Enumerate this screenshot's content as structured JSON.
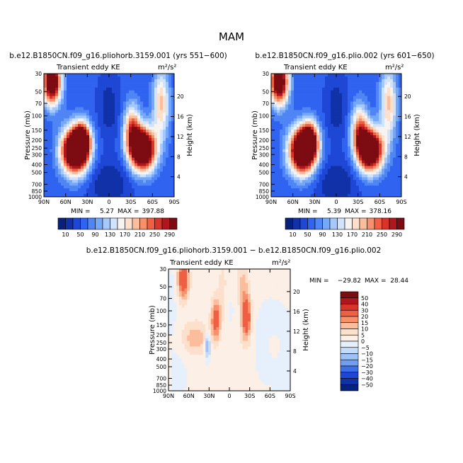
{
  "title": "MAM",
  "panels": [
    {
      "title": "b.e12.B1850CN.f09_g16.pliohorb.3159.001 (yrs 551−600)",
      "left_label": "Transient eddy KE",
      "units": "m²/s²",
      "min_label": "MIN =",
      "min_value": "5.27",
      "max_label": "MAX =",
      "max_value": "397.88"
    },
    {
      "title": "b.e12.B1850CN.f09_g16.plio.002 (yrs 601−650)",
      "left_label": "Transient eddy KE",
      "units": "m²/s²",
      "min_label": "MIN =",
      "min_value": "5.39",
      "max_label": "MAX =",
      "max_value": "378.16"
    },
    {
      "title": "b.e12.B1850CN.f09_g16.pliohorb.3159.001 − b.e12.B1850CN.f09_g16.plio.002",
      "left_label": "Transient eddy KE",
      "units": "m²/s²",
      "min_label": "MIN =",
      "min_value": "−29.82",
      "max_label": "MAX =",
      "max_value": "28.44"
    }
  ],
  "chart_data": {
    "type": "heatmap",
    "axes": {
      "ylabel": "Pressure (mb)",
      "ylabel_right": "Height (km)",
      "x_ticks": [
        "90N",
        "60N",
        "30N",
        "0",
        "30S",
        "60S",
        "90S"
      ],
      "x_values": [
        90,
        60,
        30,
        0,
        -30,
        -60,
        -90
      ],
      "y_ticks": [
        "30",
        "50",
        "70",
        "100",
        "150",
        "200",
        "250",
        "300",
        "400",
        "500",
        "700",
        "850",
        "1000"
      ],
      "y_values": [
        30,
        50,
        70,
        100,
        150,
        200,
        250,
        300,
        400,
        500,
        700,
        850,
        1000
      ],
      "y_ticks_right": [
        "4",
        "8",
        "12",
        "16",
        "20"
      ],
      "y_values_right": [
        4,
        8,
        12,
        16,
        20
      ]
    },
    "colorbar_full": {
      "labels": [
        "10",
        "50",
        "90",
        "130",
        "170",
        "210",
        "250",
        "290"
      ],
      "levels": [
        10,
        30,
        50,
        70,
        90,
        110,
        130,
        150,
        170,
        190,
        210,
        230,
        250,
        270,
        290
      ],
      "colors": [
        "#08217a",
        "#1131a8",
        "#1e47d6",
        "#2f63f0",
        "#4f85f5",
        "#76a8f8",
        "#a6c8fb",
        "#d2e3fc",
        "#f6f3f0",
        "#fde0cc",
        "#fcbd9d",
        "#f8906c",
        "#ef5f43",
        "#d8342b",
        "#b0161d",
        "#7d0b12"
      ]
    },
    "colorbar_diff": {
      "labels": [
        "50",
        "40",
        "30",
        "20",
        "15",
        "10",
        "5",
        "0",
        "−5",
        "−10",
        "−15",
        "−20",
        "−30",
        "−40",
        "−50"
      ],
      "levels": [
        50,
        40,
        30,
        20,
        15,
        10,
        5,
        0,
        -5,
        -10,
        -15,
        -20,
        -30,
        -40,
        -50
      ],
      "colors": [
        "#7d0b12",
        "#b0161d",
        "#d8342b",
        "#ef5f43",
        "#f8906c",
        "#fcbd9d",
        "#fde0cc",
        "#fbefe6",
        "#e6f0fc",
        "#c5dbfa",
        "#9ec1f7",
        "#6f9ff3",
        "#3f6fe6",
        "#1e47d6",
        "#1131a8",
        "#08217a"
      ]
    },
    "fields": [
      {
        "panel": 0,
        "background": 55,
        "features": [
          {
            "lat": 79,
            "p": 38,
            "v": 320,
            "sx": 9,
            "sy": 0.45
          },
          {
            "lat": 47,
            "p": 270,
            "v": 395,
            "sx": 13,
            "sy": 0.45
          },
          {
            "lat": 37,
            "p": 200,
            "v": 230,
            "sx": 8,
            "sy": 0.35
          },
          {
            "lat": -47,
            "p": 260,
            "v": 390,
            "sx": 12,
            "sy": 0.42
          },
          {
            "lat": -32,
            "p": 150,
            "v": 180,
            "sx": 8,
            "sy": 0.5
          },
          {
            "lat": -72,
            "p": 70,
            "v": 140,
            "sx": 8,
            "sy": 0.7
          },
          {
            "lat": 0,
            "p": 80,
            "v": -40,
            "sx": 10,
            "sy": 0.6
          },
          {
            "lat": 0,
            "p": 700,
            "v": -45,
            "sx": 20,
            "sy": 0.5
          }
        ]
      },
      {
        "panel": 1,
        "background": 55,
        "features": [
          {
            "lat": 79,
            "p": 38,
            "v": 315,
            "sx": 9,
            "sy": 0.45
          },
          {
            "lat": 47,
            "p": 270,
            "v": 375,
            "sx": 13,
            "sy": 0.45
          },
          {
            "lat": 37,
            "p": 200,
            "v": 225,
            "sx": 8,
            "sy": 0.35
          },
          {
            "lat": -47,
            "p": 265,
            "v": 378,
            "sx": 12,
            "sy": 0.42
          },
          {
            "lat": -32,
            "p": 150,
            "v": 175,
            "sx": 8,
            "sy": 0.5
          },
          {
            "lat": -72,
            "p": 70,
            "v": 140,
            "sx": 8,
            "sy": 0.7
          },
          {
            "lat": 0,
            "p": 80,
            "v": -40,
            "sx": 10,
            "sy": 0.6
          },
          {
            "lat": 0,
            "p": 700,
            "v": -45,
            "sx": 20,
            "sy": 0.5
          }
        ]
      },
      {
        "panel": 2,
        "background": 1,
        "features": [
          {
            "lat": 68,
            "p": 40,
            "v": 28,
            "sx": 6,
            "sy": 0.4
          },
          {
            "lat": 20,
            "p": 130,
            "v": 24,
            "sx": 5,
            "sy": 0.4
          },
          {
            "lat": -25,
            "p": 120,
            "v": 28,
            "sx": 5,
            "sy": 0.45
          },
          {
            "lat": -20,
            "p": 45,
            "v": 10,
            "sx": 6,
            "sy": 0.5
          },
          {
            "lat": 10,
            "p": 50,
            "v": 6,
            "sx": 6,
            "sy": 0.6
          },
          {
            "lat": 50,
            "p": 220,
            "v": 12,
            "sx": 15,
            "sy": 0.35
          },
          {
            "lat": -60,
            "p": 250,
            "v": 9,
            "sx": 10,
            "sy": 0.4
          },
          {
            "lat": 32,
            "p": 270,
            "v": -22,
            "sx": 3,
            "sy": 0.25
          },
          {
            "lat": -55,
            "p": 300,
            "v": -8,
            "sx": 10,
            "sy": 0.5
          },
          {
            "lat": -60,
            "p": 150,
            "v": -6,
            "sx": 10,
            "sy": 0.4
          },
          {
            "lat": -82,
            "p": 500,
            "v": -4,
            "sx": 10,
            "sy": 1.0
          },
          {
            "lat": 85,
            "p": 80,
            "v": -3,
            "sx": 5,
            "sy": 0.8
          },
          {
            "lat": -10,
            "p": 400,
            "v": 3,
            "sx": 12,
            "sy": 0.6
          },
          {
            "lat": 75,
            "p": 600,
            "v": -3,
            "sx": 8,
            "sy": 0.6
          },
          {
            "lat": 0,
            "p": 100,
            "v": -2,
            "sx": 8,
            "sy": 0.6
          }
        ]
      }
    ]
  }
}
